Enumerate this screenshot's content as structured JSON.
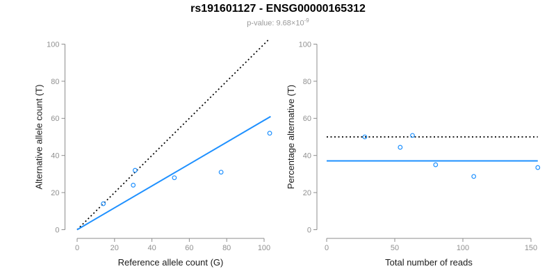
{
  "header": {
    "title": "rs191601127 - ENSG00000165312",
    "subtitle_prefix": "p-value: 9.68×10",
    "subtitle_exponent": "-9"
  },
  "colors": {
    "accent_blue": "#1E90FF",
    "line_black": "#000000",
    "axis_gray": "#8C8C8C",
    "tick_label_gray": "#909090",
    "axis_title_black": "#1a1a1a",
    "subtitle_gray": "#9a9a9a"
  },
  "chart_data": [
    {
      "id": "allele-count-scatter",
      "type": "scatter",
      "title": "",
      "xlabel": "Reference allele count (G)",
      "ylabel": "Alternative allele count (T)",
      "xticks": [
        0,
        20,
        40,
        60,
        80,
        100
      ],
      "yticks": [
        0,
        20,
        40,
        60,
        80,
        100
      ],
      "xlim": [
        0,
        107
      ],
      "ylim": [
        0,
        103
      ],
      "grid": false,
      "points": [
        [
          14,
          14
        ],
        [
          30,
          24
        ],
        [
          31,
          32
        ],
        [
          52,
          28
        ],
        [
          77,
          31
        ],
        [
          103,
          52
        ]
      ],
      "lines": [
        {
          "name": "identity-line",
          "style": "dotted",
          "color": "#000000",
          "x1": 0,
          "y1": 0,
          "x2": 103,
          "y2": 103
        },
        {
          "name": "fit-line",
          "style": "solid",
          "color": "#1E90FF",
          "x1": 0,
          "y1": 0,
          "x2": 103.5,
          "y2": 61
        }
      ]
    },
    {
      "id": "percentage-scatter",
      "type": "scatter",
      "title": "",
      "xlabel": "Total number of reads",
      "ylabel": "Percentage alternative (T)",
      "xticks": [
        0,
        50,
        100,
        150
      ],
      "yticks": [
        0,
        20,
        40,
        60,
        80,
        100
      ],
      "xlim": [
        0,
        156
      ],
      "ylim": [
        0,
        103
      ],
      "grid": false,
      "points": [
        [
          28,
          50.0
        ],
        [
          54,
          44.4
        ],
        [
          63,
          50.8
        ],
        [
          80,
          35.0
        ],
        [
          108,
          28.7
        ],
        [
          155,
          33.5
        ]
      ],
      "lines": [
        {
          "name": "expected-50pct-line",
          "style": "dotted",
          "color": "#000000",
          "x1": 0,
          "y1": 50,
          "x2": 155,
          "y2": 50
        },
        {
          "name": "observed-ratio-line",
          "style": "solid",
          "color": "#1E90FF",
          "x1": 0,
          "y1": 37.1,
          "x2": 155,
          "y2": 37.1
        }
      ]
    }
  ]
}
